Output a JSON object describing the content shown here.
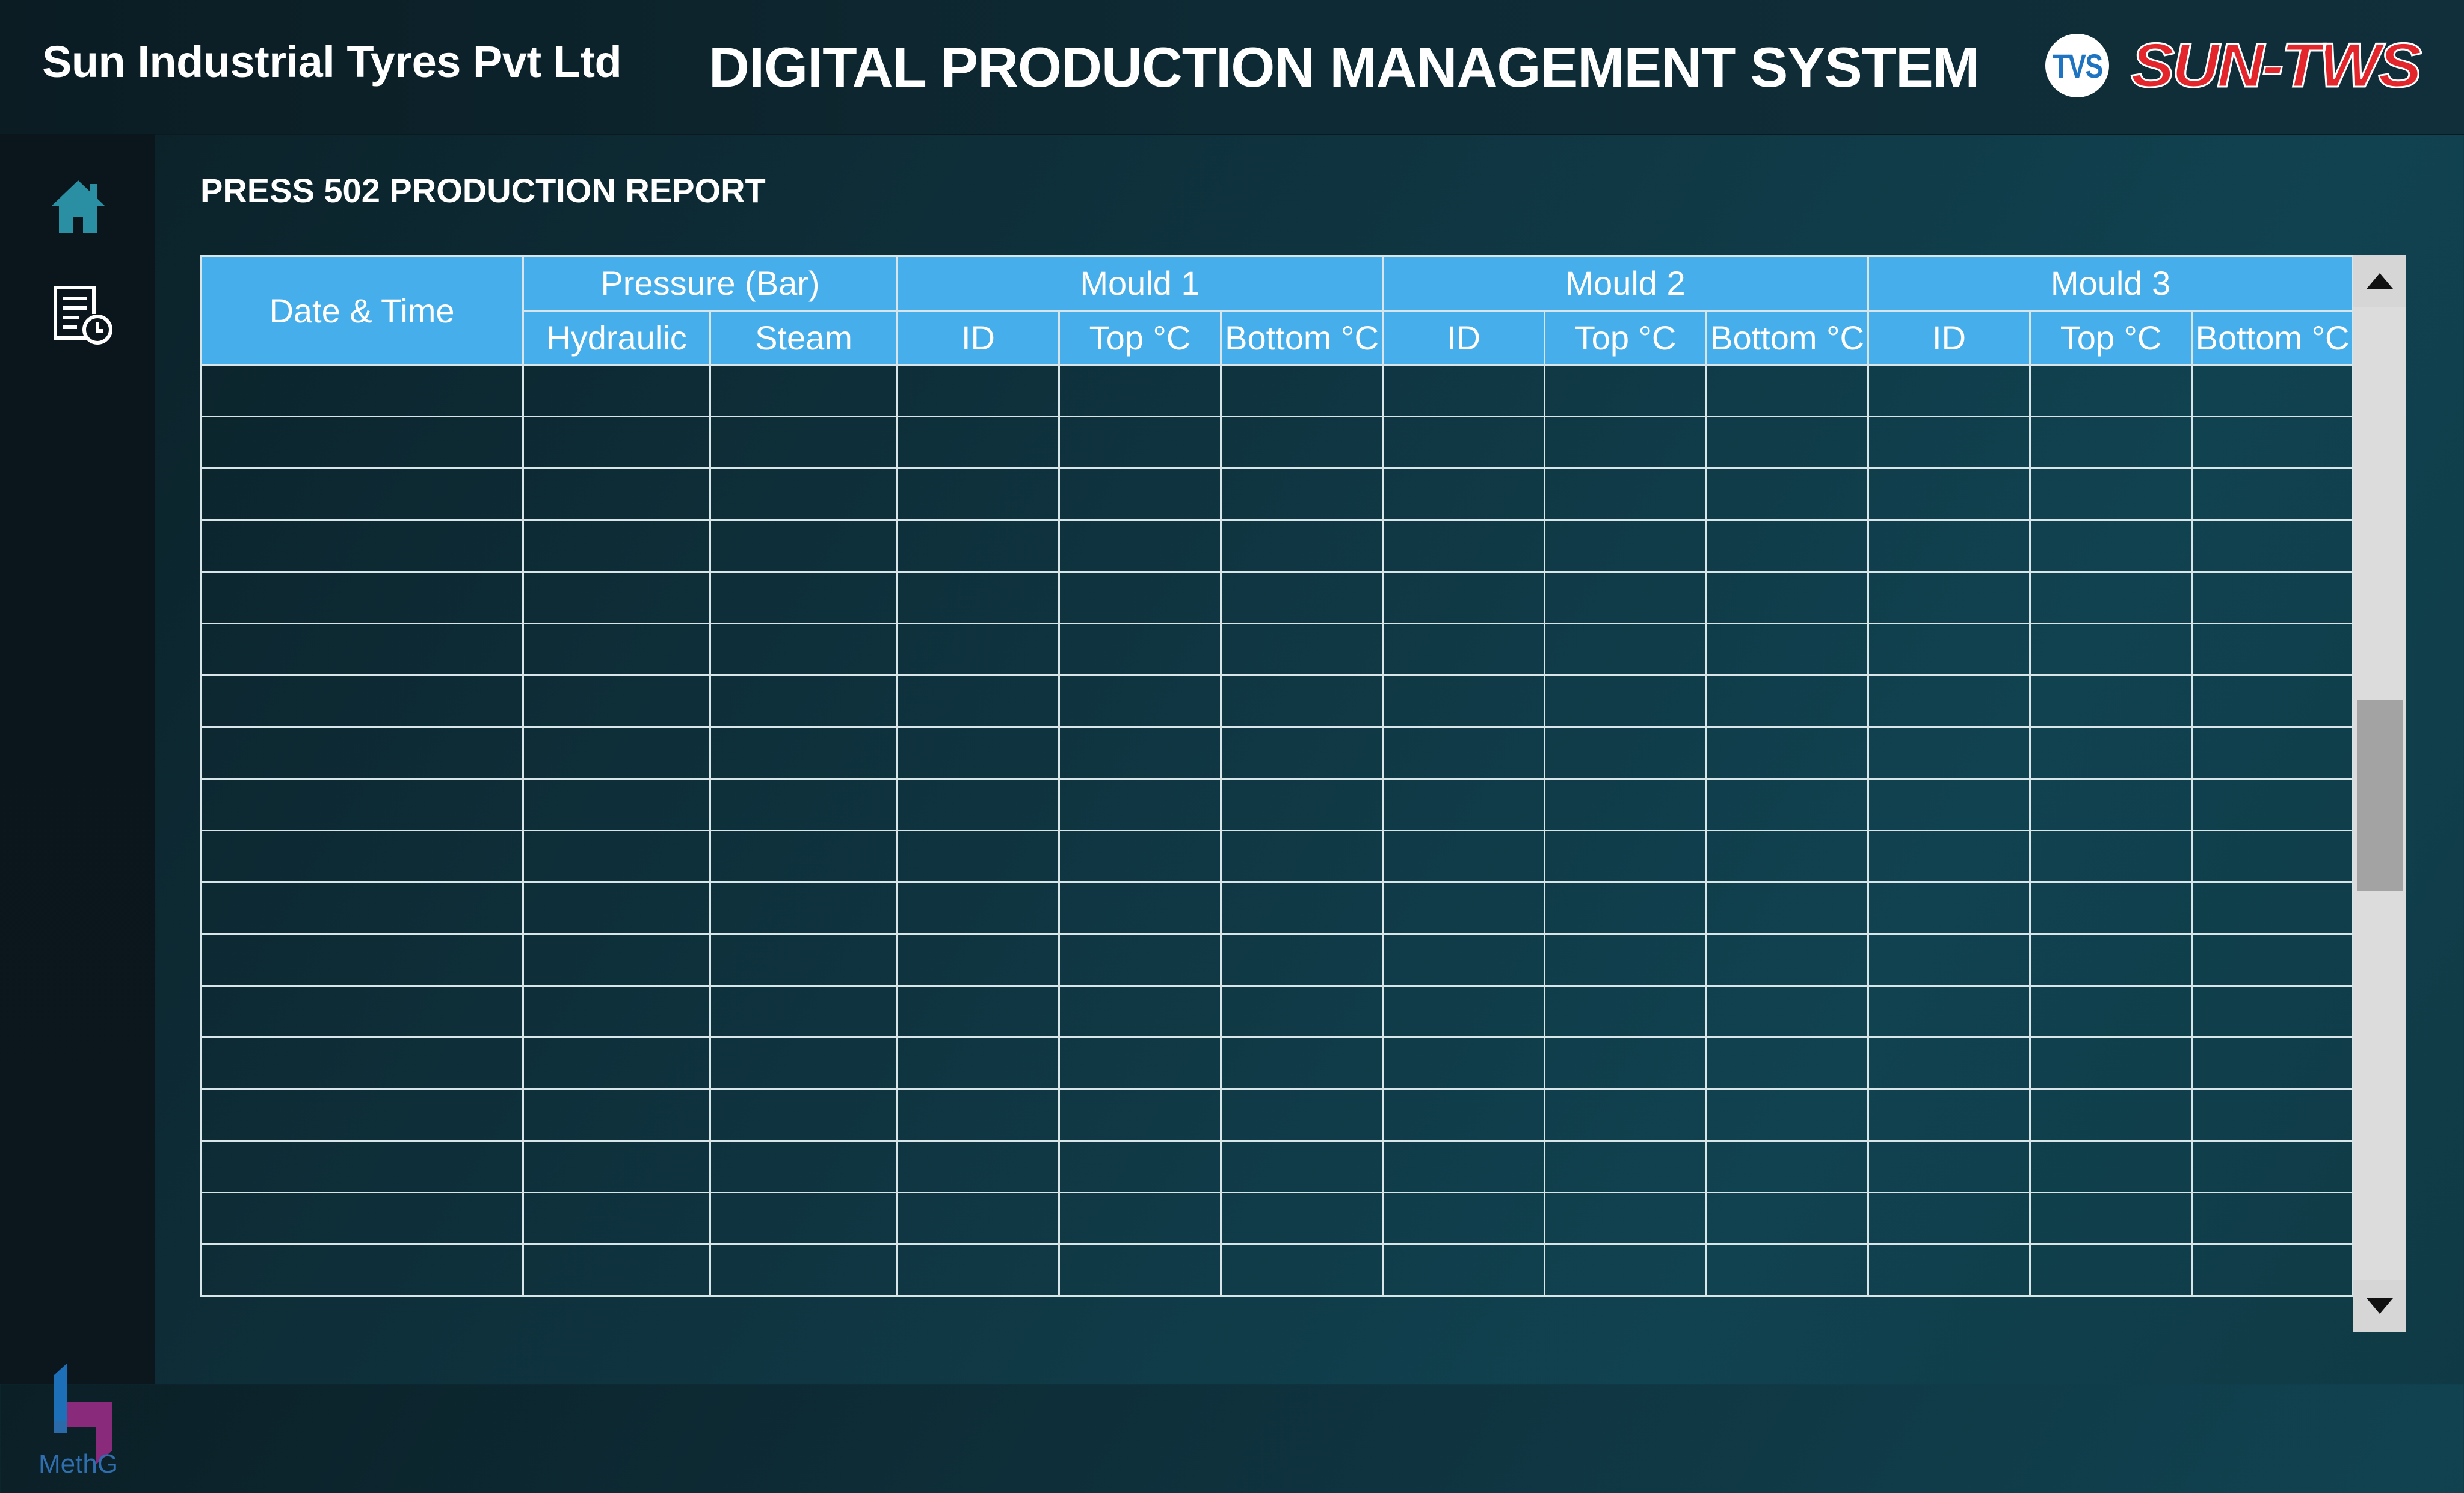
{
  "header": {
    "company_name": "Sun Industrial Tyres Pvt Ltd",
    "system_title": "DIGITAL PRODUCTION MANAGEMENT SYSTEM",
    "tvs_logo_text": "TVS",
    "brand_logo_text": "SUN-TWS"
  },
  "sidebar": {
    "items": [
      {
        "icon": "home-icon"
      },
      {
        "icon": "report-clock-icon"
      }
    ],
    "footer_logo_text": "MethG"
  },
  "report": {
    "title": "PRESS 502 PRODUCTION REPORT"
  },
  "table": {
    "group_headers": [
      "Date & Time",
      "Pressure (Bar)",
      "Mould 1",
      "Mould 2",
      "Mould 3"
    ],
    "sub_headers": [
      "Hydraulic",
      "Steam",
      "ID",
      "Top °C",
      "Bottom °C",
      "ID",
      "Top °C",
      "Bottom °C",
      "ID",
      "Top °C",
      "Bottom °C"
    ],
    "rows": [
      [
        "",
        "",
        "",
        "",
        "",
        "",
        "",
        "",
        "",
        "",
        "",
        ""
      ],
      [
        "",
        "",
        "",
        "",
        "",
        "",
        "",
        "",
        "",
        "",
        "",
        ""
      ],
      [
        "",
        "",
        "",
        "",
        "",
        "",
        "",
        "",
        "",
        "",
        "",
        ""
      ],
      [
        "",
        "",
        "",
        "",
        "",
        "",
        "",
        "",
        "",
        "",
        "",
        ""
      ],
      [
        "",
        "",
        "",
        "",
        "",
        "",
        "",
        "",
        "",
        "",
        "",
        ""
      ],
      [
        "",
        "",
        "",
        "",
        "",
        "",
        "",
        "",
        "",
        "",
        "",
        ""
      ],
      [
        "",
        "",
        "",
        "",
        "",
        "",
        "",
        "",
        "",
        "",
        "",
        ""
      ],
      [
        "",
        "",
        "",
        "",
        "",
        "",
        "",
        "",
        "",
        "",
        "",
        ""
      ],
      [
        "",
        "",
        "",
        "",
        "",
        "",
        "",
        "",
        "",
        "",
        "",
        ""
      ],
      [
        "",
        "",
        "",
        "",
        "",
        "",
        "",
        "",
        "",
        "",
        "",
        ""
      ],
      [
        "",
        "",
        "",
        "",
        "",
        "",
        "",
        "",
        "",
        "",
        "",
        ""
      ],
      [
        "",
        "",
        "",
        "",
        "",
        "",
        "",
        "",
        "",
        "",
        "",
        ""
      ],
      [
        "",
        "",
        "",
        "",
        "",
        "",
        "",
        "",
        "",
        "",
        "",
        ""
      ],
      [
        "",
        "",
        "",
        "",
        "",
        "",
        "",
        "",
        "",
        "",
        "",
        ""
      ],
      [
        "",
        "",
        "",
        "",
        "",
        "",
        "",
        "",
        "",
        "",
        "",
        ""
      ],
      [
        "",
        "",
        "",
        "",
        "",
        "",
        "",
        "",
        "",
        "",
        "",
        ""
      ],
      [
        "",
        "",
        "",
        "",
        "",
        "",
        "",
        "",
        "",
        "",
        "",
        ""
      ],
      [
        "",
        "",
        "",
        "",
        "",
        "",
        "",
        "",
        "",
        "",
        "",
        ""
      ]
    ]
  },
  "colors": {
    "header_blue": "#46aeea",
    "icon_teal": "#2a8fa3",
    "brand_red": "#e3262b"
  }
}
